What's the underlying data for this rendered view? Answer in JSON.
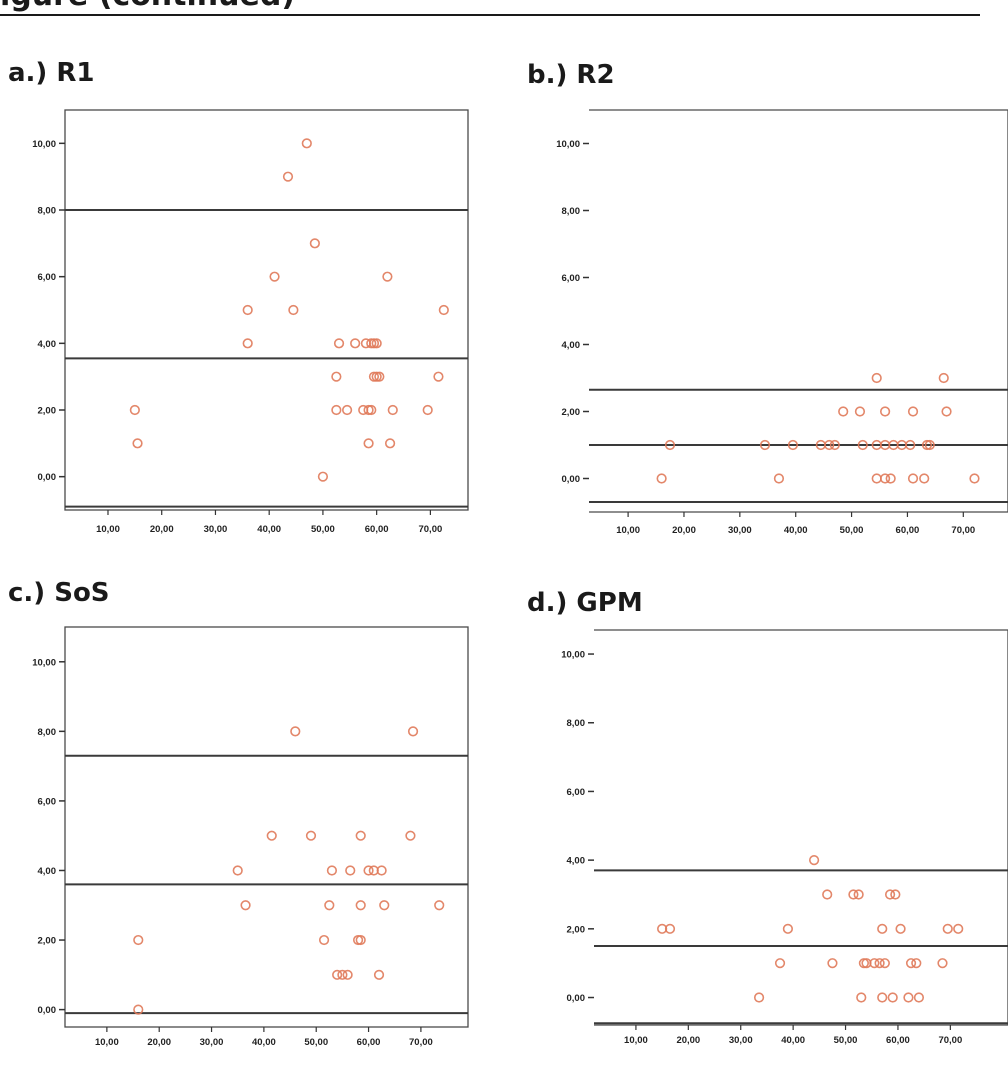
{
  "header": {
    "title_fragment": "igure (continued)"
  },
  "chart_data": [
    {
      "type": "scatter",
      "title": "a.) R1",
      "xlabel": "",
      "ylabel": "",
      "xlim": [
        2,
        77
      ],
      "ylim": [
        -1,
        11
      ],
      "xticks": [
        "10,00",
        "20,00",
        "30,00",
        "40,00",
        "50,00",
        "60,00",
        "70,00"
      ],
      "yticks": [
        "10,00",
        "8,00",
        "6,00",
        "4,00",
        "2,00",
        "0,00"
      ],
      "marker_color": "#e07a5a",
      "hlines": [
        8.0,
        3.55,
        -0.9
      ],
      "points": [
        [
          47,
          10
        ],
        [
          43.5,
          9
        ],
        [
          48.5,
          7
        ],
        [
          41,
          6
        ],
        [
          62,
          6
        ],
        [
          36,
          5
        ],
        [
          44.5,
          5
        ],
        [
          72.5,
          5
        ],
        [
          36,
          4
        ],
        [
          53,
          4
        ],
        [
          56,
          4
        ],
        [
          58,
          4
        ],
        [
          59,
          4
        ],
        [
          59.5,
          4
        ],
        [
          60,
          4
        ],
        [
          52.5,
          3
        ],
        [
          59.5,
          3
        ],
        [
          60,
          3
        ],
        [
          60.5,
          3
        ],
        [
          71.5,
          3
        ],
        [
          15,
          2
        ],
        [
          52.5,
          2
        ],
        [
          54.5,
          2
        ],
        [
          57.5,
          2
        ],
        [
          58.5,
          2
        ],
        [
          59,
          2
        ],
        [
          63,
          2
        ],
        [
          69.5,
          2
        ],
        [
          15.5,
          1
        ],
        [
          58.5,
          1
        ],
        [
          62.5,
          1
        ],
        [
          50,
          0
        ]
      ]
    },
    {
      "type": "scatter",
      "title": "b.) R2",
      "xlabel": "",
      "ylabel": "",
      "xlim": [
        3,
        78
      ],
      "ylim": [
        -1,
        11
      ],
      "xticks": [
        "10,00",
        "20,00",
        "30,00",
        "40,00",
        "50,00",
        "60,00",
        "70,00"
      ],
      "yticks": [
        "10,00",
        "8,00",
        "6,00",
        "4,00",
        "2,00",
        "0,00"
      ],
      "marker_color": "#e07a5a",
      "hlines": [
        2.65,
        1.0,
        -0.7
      ],
      "points": [
        [
          54.5,
          3
        ],
        [
          66.5,
          3
        ],
        [
          48.5,
          2
        ],
        [
          51.5,
          2
        ],
        [
          56,
          2
        ],
        [
          61,
          2
        ],
        [
          67,
          2
        ],
        [
          17.5,
          1
        ],
        [
          34.5,
          1
        ],
        [
          39.5,
          1
        ],
        [
          44.5,
          1
        ],
        [
          46,
          1
        ],
        [
          47,
          1
        ],
        [
          52,
          1
        ],
        [
          54.5,
          1
        ],
        [
          56,
          1
        ],
        [
          57.5,
          1
        ],
        [
          59,
          1
        ],
        [
          60.5,
          1
        ],
        [
          63.5,
          1
        ],
        [
          64,
          1
        ],
        [
          16,
          0
        ],
        [
          37,
          0
        ],
        [
          54.5,
          0
        ],
        [
          56,
          0
        ],
        [
          57,
          0
        ],
        [
          61,
          0
        ],
        [
          63,
          0
        ],
        [
          72,
          0
        ]
      ]
    },
    {
      "type": "scatter",
      "title": "c.) SoS",
      "xlabel": "",
      "ylabel": "",
      "xlim": [
        2,
        79
      ],
      "ylim": [
        -0.5,
        11
      ],
      "xticks": [
        "10,00",
        "20,00",
        "30,00",
        "40,00",
        "50,00",
        "60,00",
        "70,00"
      ],
      "yticks": [
        "10,00",
        "8,00",
        "6,00",
        "4,00",
        "2,00",
        "0,00"
      ],
      "marker_color": "#e07a5a",
      "hlines": [
        7.3,
        3.6,
        -0.1
      ],
      "points": [
        [
          46,
          8
        ],
        [
          68.5,
          8
        ],
        [
          41.5,
          5
        ],
        [
          49,
          5
        ],
        [
          58.5,
          5
        ],
        [
          68,
          5
        ],
        [
          35,
          4
        ],
        [
          53,
          4
        ],
        [
          56.5,
          4
        ],
        [
          60,
          4
        ],
        [
          61,
          4
        ],
        [
          62.5,
          4
        ],
        [
          36.5,
          3
        ],
        [
          52.5,
          3
        ],
        [
          58.5,
          3
        ],
        [
          63,
          3
        ],
        [
          73.5,
          3
        ],
        [
          16,
          2
        ],
        [
          51.5,
          2
        ],
        [
          58,
          2
        ],
        [
          58.5,
          2
        ],
        [
          54,
          1
        ],
        [
          55,
          1
        ],
        [
          56,
          1
        ],
        [
          62,
          1
        ],
        [
          16,
          0
        ]
      ]
    },
    {
      "type": "scatter",
      "title": "d.) GPM",
      "xlabel": "",
      "ylabel": "",
      "xlim": [
        2,
        81
      ],
      "ylim": [
        -0.8,
        10.7
      ],
      "xticks": [
        "10,00",
        "20,00",
        "30,00",
        "40,00",
        "50,00",
        "60,00",
        "70,00"
      ],
      "yticks": [
        "10,00",
        "8,00",
        "6,00",
        "4,00",
        "2,00",
        "0,00"
      ],
      "marker_color": "#e07a5a",
      "hlines": [
        3.7,
        1.5,
        -0.75
      ],
      "points": [
        [
          44,
          4
        ],
        [
          46.5,
          3
        ],
        [
          51.5,
          3
        ],
        [
          52.5,
          3
        ],
        [
          58.5,
          3
        ],
        [
          59.5,
          3
        ],
        [
          15,
          2
        ],
        [
          16.5,
          2
        ],
        [
          39,
          2
        ],
        [
          57,
          2
        ],
        [
          60.5,
          2
        ],
        [
          69.5,
          2
        ],
        [
          71.5,
          2
        ],
        [
          37.5,
          1
        ],
        [
          47.5,
          1
        ],
        [
          53.5,
          1
        ],
        [
          54,
          1
        ],
        [
          55.5,
          1
        ],
        [
          56.5,
          1
        ],
        [
          57.5,
          1
        ],
        [
          62.5,
          1
        ],
        [
          63.5,
          1
        ],
        [
          68.5,
          1
        ],
        [
          33.5,
          0
        ],
        [
          53,
          0
        ],
        [
          57,
          0
        ],
        [
          59,
          0
        ],
        [
          62,
          0
        ],
        [
          64,
          0
        ]
      ]
    }
  ]
}
